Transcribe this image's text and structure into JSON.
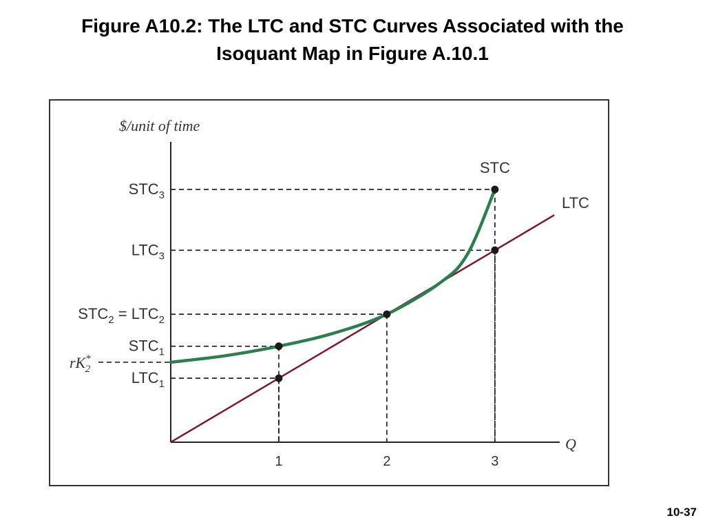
{
  "slide": {
    "title_line1": "Figure A10.2: The LTC and STC Curves Associated with the",
    "title_line2": "Isoquant Map in Figure A.10.1",
    "page_number": "10-37"
  },
  "chart_data": {
    "type": "line",
    "ylabel": "$/unit of time",
    "xlabel": "Q",
    "x_ticks": [
      "1",
      "2",
      "3"
    ],
    "y_tick_labels": [
      {
        "main": "STC",
        "sub": "3",
        "y": 7.9
      },
      {
        "main": "LTC",
        "sub": "3",
        "y": 6.0
      },
      {
        "main": "STC",
        "sub": "2",
        "extra_main": " = LTC",
        "extra_sub": "2",
        "y": 4.0
      },
      {
        "main": "STC",
        "sub": "1",
        "y": 3.0
      },
      {
        "main": "LTC",
        "sub": "1",
        "y": 2.0
      }
    ],
    "intercept_label": {
      "main": "rK",
      "sup": "*",
      "sub": "2",
      "y": 2.5
    },
    "xlim": [
      0,
      3.6
    ],
    "ylim": [
      0,
      9.3
    ],
    "series": [
      {
        "name": "LTC",
        "color": "#7b1538",
        "x": [
          0,
          1,
          2,
          3,
          3.55
        ],
        "y": [
          0,
          2.0,
          4.0,
          6.0,
          7.1
        ]
      },
      {
        "name": "STC",
        "color": "#2e7d4f",
        "x": [
          0,
          0.5,
          1,
          1.5,
          2,
          2.5,
          2.75,
          3
        ],
        "y": [
          2.5,
          2.7,
          3.0,
          3.4,
          4.0,
          5.0,
          5.9,
          7.9
        ]
      }
    ],
    "points": [
      {
        "x": 1,
        "y": 2.0
      },
      {
        "x": 1,
        "y": 3.0
      },
      {
        "x": 2,
        "y": 4.0
      },
      {
        "x": 3,
        "y": 6.0
      },
      {
        "x": 3,
        "y": 7.9
      }
    ],
    "grid": false,
    "guide_lines": "dashed"
  }
}
